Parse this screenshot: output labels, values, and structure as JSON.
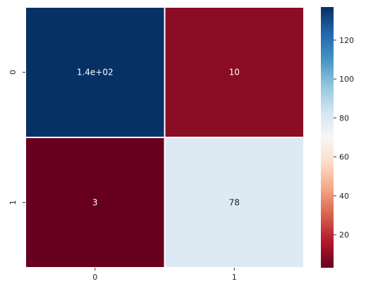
{
  "chart_data": {
    "type": "heatmap",
    "title": "",
    "xlabel": "",
    "ylabel": "",
    "x_categories": [
      "0",
      "1"
    ],
    "y_categories": [
      "0",
      "1"
    ],
    "values": [
      [
        140,
        10
      ],
      [
        3,
        78
      ]
    ],
    "annotations": [
      [
        "1.4e+02",
        "10"
      ],
      [
        "3",
        "78"
      ]
    ],
    "colormap": "RdBu",
    "colorbar": {
      "vmin": 3,
      "vmax": 137,
      "ticks": [
        20,
        40,
        60,
        80,
        100,
        120
      ],
      "tick_labels": [
        "20",
        "40",
        "60",
        "80",
        "100",
        "120"
      ]
    },
    "cell_colors": [
      [
        "#063165",
        "#8a0c25"
      ],
      [
        "#67001f",
        "#ddeaf3"
      ]
    ],
    "annotation_colors": [
      [
        "#ffffff",
        "#ffffff"
      ],
      [
        "#ffffff",
        "#262626"
      ]
    ],
    "colorbar_stops": [
      "#67001f",
      "#b2182b",
      "#d6604d",
      "#f4a582",
      "#fddbc7",
      "#f7f7f7",
      "#d1e5f0",
      "#92c5de",
      "#4393c3",
      "#2166ac",
      "#053061"
    ]
  }
}
